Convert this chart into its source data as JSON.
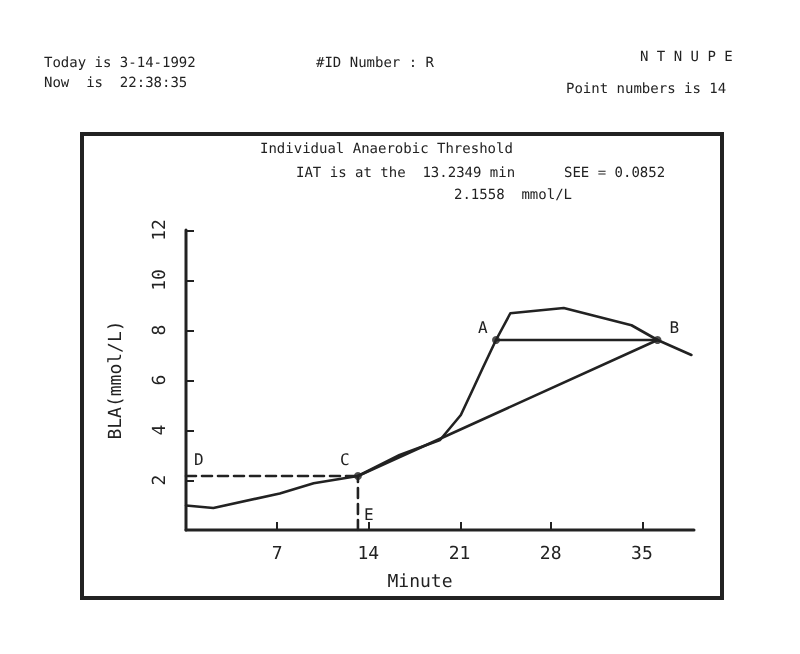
{
  "chart_data": {
    "type": "line",
    "title": "Individual Anaerobic Threshold",
    "xlabel": "Minute",
    "ylabel": "BLA(mmol/L)",
    "xlim": [
      0,
      39
    ],
    "xticks": [
      7,
      14,
      21,
      28,
      35
    ],
    "ylim": [
      0,
      12
    ],
    "yticks": [
      2,
      4,
      6,
      8,
      10,
      12
    ],
    "grid": false,
    "marker": "none",
    "series": [
      {
        "color": "#222222",
        "x": [
          0,
          2.1,
          7.2,
          9.8,
          13.2,
          16.4,
          19.5,
          21.1,
          22.0,
          22.8,
          23.8,
          24.9,
          29.0,
          34.2,
          36.2,
          38.8
        ],
        "values": [
          0.98,
          0.88,
          1.46,
          1.87,
          2.16,
          3.0,
          3.6,
          4.6,
          5.6,
          6.5,
          7.6,
          8.67,
          8.88,
          8.19,
          7.6,
          7.0
        ]
      },
      {
        "color": "#222222",
        "x": [
          0,
          13.2
        ],
        "values": [
          2.16,
          2.16
        ],
        "line_style": "dashed"
      },
      {
        "color": "#222222",
        "x": [
          13.2,
          13.2
        ],
        "values": [
          0,
          2.16
        ],
        "line_style": "dashed"
      },
      {
        "color": "#222222",
        "x": [
          23.8,
          36.2
        ],
        "values": [
          7.6,
          7.6
        ]
      },
      {
        "color": "#222222",
        "x": [
          13.2,
          36.2
        ],
        "values": [
          2.16,
          7.6
        ]
      },
      {
        "type": "scatter",
        "marker": "circle",
        "color": "#222222",
        "x": [
          23.8,
          36.2,
          13.2
        ],
        "values": [
          7.6,
          7.6,
          2.16
        ]
      }
    ],
    "annotations": [
      "Today is 3-14-1992",
      "Now  is  22:38:35",
      "#ID Number : R",
      "N T N U P E",
      "Point numbers is 14",
      "IAT is at the  13.2349 min",
      "2.1558  mmol/L",
      "SEE = 0.0852",
      {
        "text": "A",
        "x": 23.8,
        "y": 7.6
      },
      {
        "text": "B",
        "x": 36.2,
        "y": 7.6
      },
      {
        "text": "C",
        "x": 13.2,
        "y": 2.16
      },
      {
        "text": "D",
        "x": 0,
        "y": 2.16
      },
      {
        "text": "E",
        "x": 13.2,
        "y": 0.6
      }
    ]
  }
}
